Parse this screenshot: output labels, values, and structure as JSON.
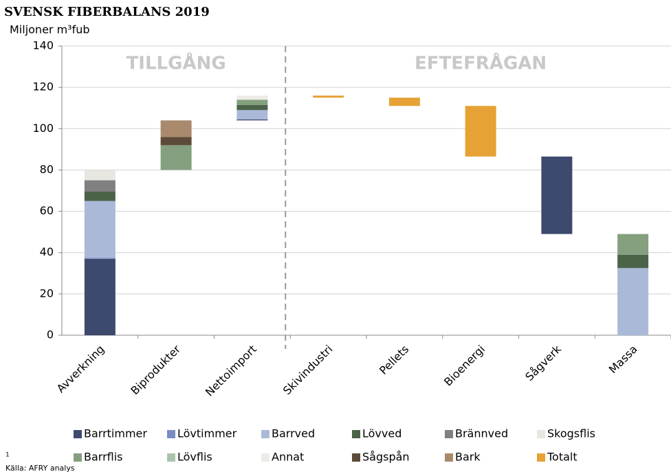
{
  "chart_data": {
    "type": "waterfall",
    "title": "SVENSK FIBERBALANS 2019",
    "y_label": "Miljoner m³fub",
    "groups": [
      {
        "label": "TILLGÅNG",
        "categories": [
          "Avverkning",
          "Biprodukter",
          "Nettoimport"
        ]
      },
      {
        "label": "EFTEFRÅGAN",
        "categories": [
          "Skivindustri",
          "Pellets",
          "Bioenergi",
          "Sågverk",
          "Massa"
        ]
      }
    ],
    "series": [
      {
        "name": "Barrtimmer",
        "color": "#3d4a6e",
        "values": [
          37,
          null,
          0.5,
          null,
          null,
          null,
          37.5,
          null
        ]
      },
      {
        "name": "Lövtimmer",
        "color": "#7a8cc2",
        "values": [
          0.5,
          null,
          null,
          null,
          null,
          null,
          null,
          null
        ]
      },
      {
        "name": "Barrved",
        "color": "#abb9d9",
        "values": [
          27.5,
          null,
          4.5,
          null,
          null,
          null,
          null,
          32.5
        ]
      },
      {
        "name": "Lövved",
        "color": "#4b6449",
        "values": [
          4.5,
          null,
          2.5,
          null,
          null,
          null,
          null,
          6.5
        ]
      },
      {
        "name": "Brännved",
        "color": "#808080",
        "values": [
          5.5,
          null,
          null,
          null,
          null,
          null,
          null,
          null
        ]
      },
      {
        "name": "Skogsflis",
        "color": "#e7e6e0",
        "values": [
          5,
          null,
          null,
          null,
          null,
          null,
          null,
          null
        ]
      },
      {
        "name": "Barrflis",
        "color": "#84a07e",
        "values": [
          null,
          12,
          2.5,
          null,
          null,
          null,
          null,
          10
        ]
      },
      {
        "name": "Lövflis",
        "color": "#a9c4ab",
        "values": [
          null,
          null,
          null,
          null,
          null,
          null,
          null,
          null
        ]
      },
      {
        "name": "Annat",
        "color": "#ecebe5",
        "values": [
          null,
          null,
          2,
          null,
          null,
          null,
          null,
          null
        ]
      },
      {
        "name": "Sågspån",
        "color": "#5d4a38",
        "values": [
          null,
          4,
          null,
          null,
          null,
          null,
          null,
          null
        ]
      },
      {
        "name": "Bark",
        "color": "#a98a6c",
        "values": [
          null,
          8,
          null,
          null,
          null,
          null,
          null,
          null
        ]
      },
      {
        "name": "Totalt",
        "color": "#e6a234",
        "values": [
          null,
          null,
          null,
          1,
          4,
          24.5,
          null,
          null
        ]
      }
    ],
    "ylim": [
      0,
      140
    ],
    "yticks": [
      0,
      20,
      40,
      60,
      80,
      100,
      120,
      140
    ],
    "grid": true,
    "footnote": "1",
    "source": "Källa: AFRY analys"
  }
}
